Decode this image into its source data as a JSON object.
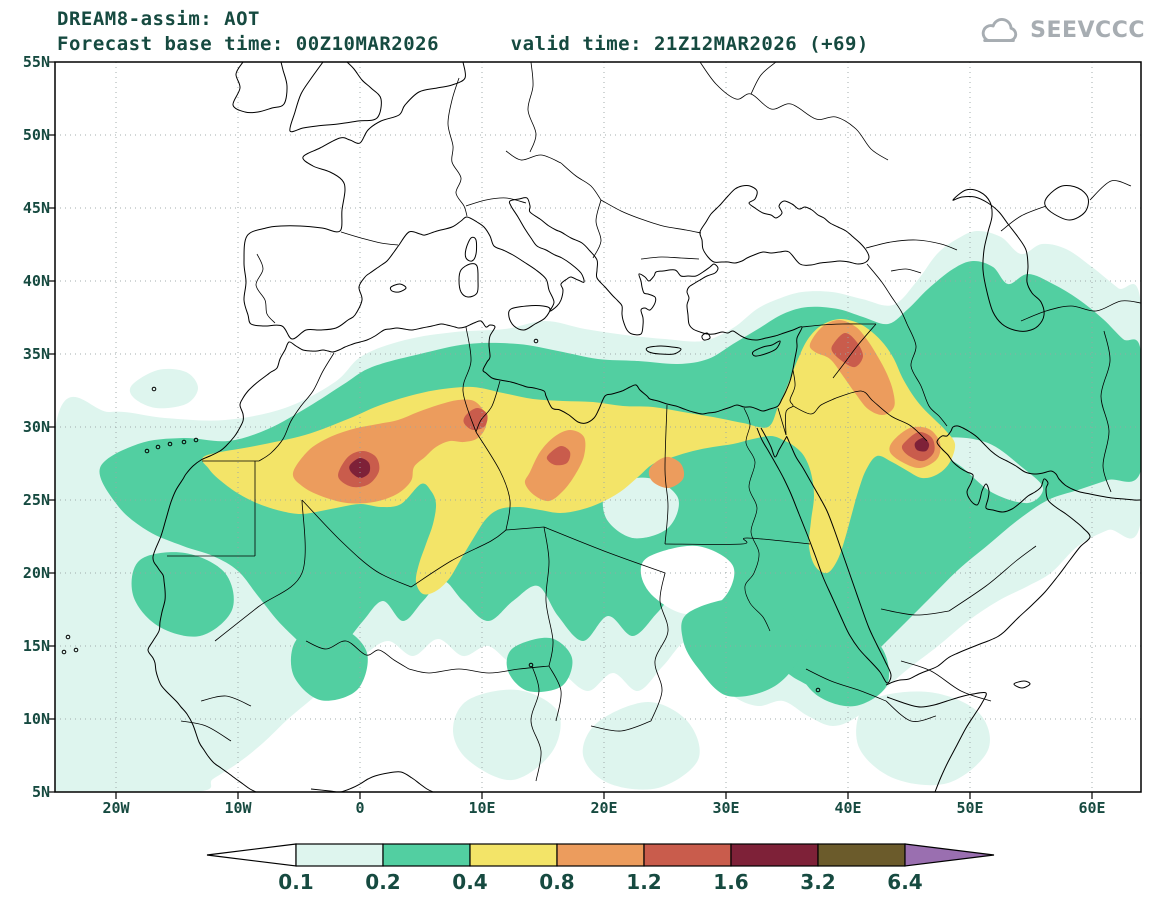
{
  "header": {
    "title": "DREAM8-assim: AOT",
    "subtitle": "Forecast base time: 00Z10MAR2026      valid time: 21Z12MAR2026 (+69)"
  },
  "logo": {
    "label": "SEEVCCC"
  },
  "axes": {
    "lat_labels": [
      "55N",
      "50N",
      "45N",
      "40N",
      "35N",
      "30N",
      "25N",
      "20N",
      "15N",
      "10N",
      "5N"
    ],
    "lon_labels": [
      "20W",
      "10W",
      "0",
      "10E",
      "20E",
      "30E",
      "40E",
      "50E",
      "60E"
    ]
  },
  "colorbar": {
    "tick_labels": [
      "0.1",
      "0.2",
      "0.4",
      "0.8",
      "1.2",
      "1.6",
      "3.2",
      "6.4"
    ]
  },
  "palette": {
    "background": "#ffffff",
    "text": "#164a40",
    "logo_gray": "#a7adb2",
    "coast": "#000000",
    "grid": "#9aa5a5",
    "s_below": "#ffffff",
    "s01": "#def5ee",
    "s02": "#52cfa1",
    "s04": "#f3e468",
    "s08": "#ec9c5d",
    "s12": "#c95c4c",
    "s16": "#7e2138",
    "s32": "#6b5b2b",
    "s64": "#9a6fb0"
  },
  "chart_data": {
    "type": "filled-contour-map",
    "model": "DREAM8-assim",
    "variable": "AOT",
    "forecast_base_time": "00Z10MAR2026",
    "valid_time": "21Z12MAR2026",
    "forecast_hour": "+69",
    "contour_levels": [
      0.1,
      0.2,
      0.4,
      0.8,
      1.2,
      1.6,
      3.2,
      6.4
    ],
    "lat_range": [
      "5N",
      "55N"
    ],
    "lon_range": [
      "20W",
      "60E"
    ],
    "legend_position": "bottom"
  }
}
